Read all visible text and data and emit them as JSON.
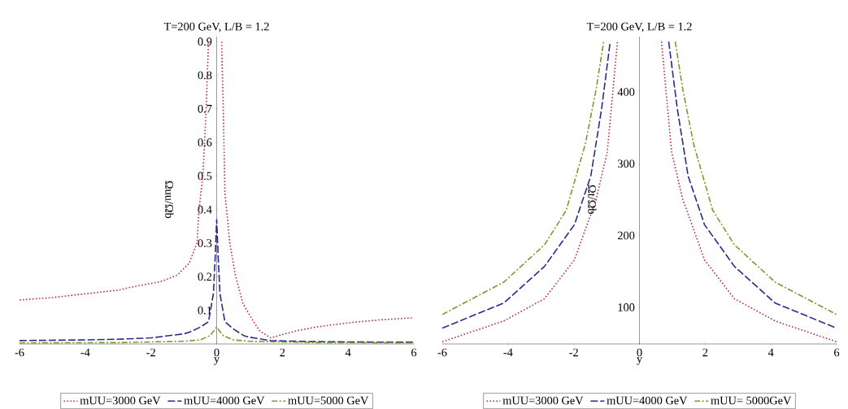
{
  "chart_data": [
    {
      "type": "line",
      "title": "T=200 GeV, L/B = 1.2",
      "xlabel": "y",
      "ylabel": "Ωuu/Ωb",
      "xlim": [
        -6,
        6
      ],
      "ylim": [
        0,
        0.915
      ],
      "xticks": [
        -6,
        -4,
        -2,
        0,
        2,
        4,
        6
      ],
      "yticks": [
        0.1,
        0.2,
        0.3,
        0.4,
        0.5,
        0.6,
        0.7,
        0.8,
        0.9
      ],
      "legend": "bottom",
      "series": [
        {
          "name": "mUU=3000 GeV",
          "color": "#b03040",
          "line_style": "dotted",
          "x": [
            -6,
            -5,
            -4.13,
            -3,
            -2.65,
            -2,
            -1.66,
            -1.2,
            -0.84,
            -0.6,
            -0.54,
            -0.42,
            -0.32,
            -0.25,
            0,
            0.15,
            0.2,
            0.25,
            0.4,
            0.57,
            0.8,
            1.06,
            1.3,
            1.64,
            2,
            2.47,
            3,
            4.1,
            5,
            6
          ],
          "values": [
            0.131,
            0.138,
            0.148,
            0.16,
            0.168,
            0.18,
            0.187,
            0.205,
            0.24,
            0.3,
            0.4,
            0.5,
            0.7,
            0.9,
            null,
            0.9,
            0.7,
            0.45,
            0.3,
            0.204,
            0.12,
            0.076,
            0.04,
            0.018,
            0.028,
            0.04,
            0.05,
            0.064,
            0.072,
            0.078
          ]
        },
        {
          "name": "mUU=4000 GeV",
          "color": "#2a2a8a",
          "line_style": "dashed",
          "x": [
            -6,
            -4,
            -3,
            -2,
            -1.5,
            -1,
            -0.83,
            -0.5,
            -0.25,
            -0.1,
            -0.05,
            0,
            0.05,
            0.1,
            0.25,
            0.5,
            0.82,
            1,
            1.64,
            2,
            3,
            4,
            6
          ],
          "values": [
            0.01,
            0.012,
            0.014,
            0.018,
            0.024,
            0.03,
            0.035,
            0.05,
            0.066,
            0.15,
            0.25,
            0.37,
            0.25,
            0.15,
            0.066,
            0.045,
            0.025,
            0.02,
            0.01,
            0.009,
            0.007,
            0.006,
            0.005
          ]
        },
        {
          "name": "mUU=5000 GeV",
          "color": "#7a9a30",
          "line_style": "dashdot",
          "x": [
            -6,
            -3,
            -1,
            -0.5,
            -0.2,
            0,
            0.2,
            0.5,
            1,
            3,
            6
          ],
          "values": [
            0.003,
            0.004,
            0.008,
            0.012,
            0.025,
            0.05,
            0.025,
            0.012,
            0.008,
            0.004,
            0.003
          ]
        }
      ]
    },
    {
      "type": "line",
      "title": "T=200 GeV, L/B = 1.2",
      "xlabel": "y",
      "ylabel": "Ωt/Ωb",
      "xlim": [
        -6,
        6
      ],
      "ylim": [
        49,
        477
      ],
      "xticks": [
        -6,
        -4,
        -2,
        0,
        2,
        4,
        6
      ],
      "yticks": [
        100,
        200,
        300,
        400
      ],
      "legend": "bottom",
      "series": [
        {
          "name": "mUU=3000 GeV",
          "color": "#b03040",
          "line_style": "dotted",
          "x": [
            -6,
            -4.13,
            -2.89,
            -1.98,
            -1.32,
            -0.98,
            -0.67,
            0,
            0.67,
            0.98,
            1.32,
            1.98,
            2.89,
            4.13,
            6
          ],
          "values": [
            52,
            81,
            112,
            166,
            250,
            316,
            470,
            null,
            470,
            316,
            250,
            166,
            112,
            81,
            52
          ]
        },
        {
          "name": "mUU=4000 GeV",
          "color": "#2a2a8a",
          "line_style": "dashed",
          "x": [
            -6,
            -4.13,
            -2.89,
            -1.98,
            -1.48,
            -1.15,
            -0.89,
            0,
            0.89,
            1.15,
            1.48,
            1.98,
            2.89,
            4.13,
            6
          ],
          "values": [
            71,
            106,
            157,
            215,
            283,
            377,
            470,
            null,
            470,
            377,
            283,
            215,
            157,
            106,
            71
          ]
        },
        {
          "name": "mUU= 5000GeV",
          "color": "#7a9a30",
          "line_style": "dashdot",
          "x": [
            -6,
            -4.13,
            -2.89,
            -2.23,
            -1.65,
            -1.32,
            -1.09,
            0,
            1.09,
            1.32,
            1.65,
            2.23,
            2.89,
            4.13,
            6
          ],
          "values": [
            90,
            135,
            187,
            235,
            327,
            403,
            470,
            null,
            470,
            403,
            327,
            235,
            187,
            135,
            90
          ]
        }
      ]
    }
  ]
}
